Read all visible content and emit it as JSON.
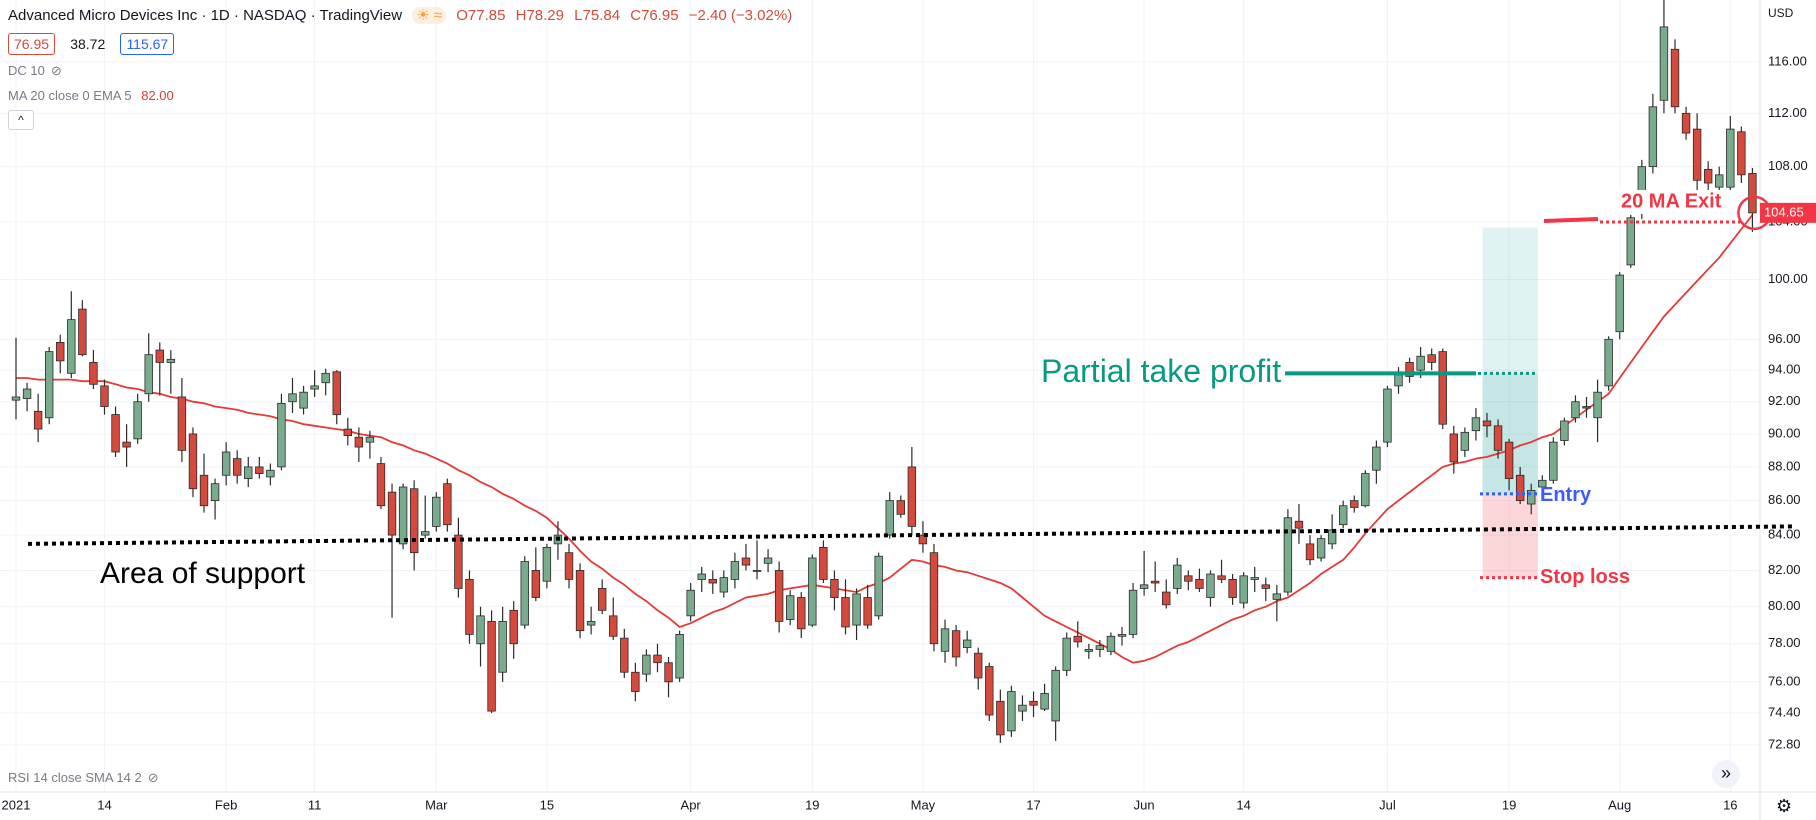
{
  "chart_data": {
    "type": "candlestick",
    "symbol": "Advanced Micro Devices Inc · 1D · NASDAQ · TradingView",
    "readout": [
      "O77.85",
      "H78.29",
      "L75.84",
      "C76.95",
      "−2.40 (−3.02%)"
    ],
    "badges": [
      76.95,
      38.72,
      115.67
    ],
    "dc_label": "DC 10",
    "rsi_label": "RSI 14 close SMA 14 2",
    "currency": "USD",
    "log_scale": true,
    "grid": true,
    "up_color": "#79ab8d",
    "down_color": "#d44a3d",
    "wick_color": "#2b2b2b",
    "categories": [
      "2021",
      null,
      null,
      null,
      null,
      null,
      null,
      null,
      "14",
      null,
      null,
      null,
      null,
      null,
      null,
      null,
      null,
      null,
      null,
      "Feb",
      null,
      null,
      null,
      null,
      null,
      null,
      null,
      "11",
      null,
      null,
      null,
      null,
      null,
      null,
      null,
      null,
      null,
      null,
      "Mar",
      null,
      null,
      null,
      null,
      null,
      null,
      null,
      null,
      null,
      "15",
      null,
      null,
      null,
      null,
      null,
      null,
      null,
      null,
      null,
      null,
      null,
      null,
      "Apr",
      null,
      null,
      null,
      null,
      null,
      null,
      null,
      null,
      null,
      null,
      "19",
      null,
      null,
      null,
      null,
      null,
      null,
      null,
      null,
      null,
      "May",
      null,
      null,
      null,
      null,
      null,
      null,
      null,
      null,
      null,
      "17",
      null,
      null,
      null,
      null,
      null,
      null,
      null,
      null,
      null,
      "Jun",
      null,
      null,
      null,
      null,
      null,
      null,
      null,
      null,
      "14",
      null,
      null,
      null,
      null,
      null,
      null,
      null,
      null,
      null,
      null,
      null,
      null,
      "Jul",
      null,
      null,
      null,
      null,
      null,
      null,
      null,
      null,
      null,
      null,
      "19",
      null,
      null,
      null,
      null,
      null,
      null,
      null,
      null,
      null,
      "Aug",
      null,
      null,
      null,
      null,
      null,
      null,
      null,
      null,
      null,
      "16",
      null,
      null
    ],
    "open": [
      92.1,
      92.2,
      91.4,
      91.0,
      95.8,
      93.8,
      98.0,
      94.5,
      93.0,
      91.2,
      89.5,
      89.7,
      92.5,
      95.3,
      94.5,
      92.3,
      90.0,
      87.5,
      86.0,
      87.5,
      88.5,
      87.3,
      88.0,
      87.4,
      88.0,
      92.0,
      91.6,
      92.8,
      93.2,
      93.9,
      90.3,
      89.8,
      89.5,
      88.2,
      86.5,
      83.5,
      86.7,
      84.0,
      84.5,
      87.0,
      84.0,
      81.5,
      78.0,
      79.2,
      76.5,
      79.8,
      79.0,
      82.0,
      81.4,
      83.5,
      83.0,
      82.0,
      79.0,
      81.0,
      79.5,
      78.3,
      76.5,
      76.4,
      77.4,
      77.0,
      76.2,
      79.5,
      81.5,
      81.5,
      80.8,
      81.5,
      82.7,
      82.0,
      82.4,
      82.0,
      79.3,
      80.5,
      79.0,
      83.3,
      81.5,
      80.5,
      79.0,
      80.5,
      79.5,
      84.0,
      86.0,
      88.0,
      84.0,
      83.0,
      77.6,
      78.7,
      77.8,
      77.5,
      76.8,
      75.0,
      73.5,
      74.5,
      75.0,
      74.6,
      74.0,
      76.6,
      78.4,
      77.6,
      77.7,
      77.6,
      78.4,
      78.5,
      81.0,
      81.4,
      80.8,
      81.0,
      81.7,
      81.5,
      80.5,
      81.7,
      81.5,
      80.2,
      81.5,
      81.2,
      80.4,
      80.8,
      84.8,
      83.5,
      82.7,
      83.5,
      84.6,
      86.0,
      85.7,
      87.8,
      89.5,
      93.0,
      94.5,
      94.0,
      95.0,
      95.2,
      90.0,
      89.0,
      90.2,
      90.8,
      90.5,
      89.5,
      87.5,
      85.8,
      86.8,
      87.2,
      89.6,
      91.0,
      91.7,
      91.0,
      93.0,
      96.5,
      101.0,
      104.6,
      108.0,
      113.0,
      117.0,
      112.0,
      110.8,
      107.8,
      106.5,
      106.5,
      110.6,
      107.5
    ],
    "high": [
      96.1,
      93.2,
      92.5,
      95.5,
      96.3,
      99.2,
      98.6,
      95.3,
      93.4,
      91.7,
      90.6,
      92.5,
      96.4,
      95.8,
      95.3,
      93.5,
      90.4,
      88.8,
      87.3,
      89.5,
      89.0,
      88.6,
      88.6,
      88.2,
      92.5,
      93.5,
      93.0,
      94.0,
      94.1,
      94.0,
      91.0,
      90.4,
      90.2,
      88.6,
      87.0,
      87.0,
      87.2,
      86.3,
      86.5,
      87.3,
      85.0,
      82.0,
      80.0,
      79.8,
      80.0,
      80.3,
      82.8,
      83.3,
      83.5,
      84.8,
      83.5,
      82.4,
      80.0,
      81.5,
      80.5,
      78.8,
      77.0,
      77.7,
      78.0,
      77.3,
      78.7,
      81.3,
      82.2,
      82.0,
      82.0,
      83.0,
      83.5,
      83.7,
      83.2,
      82.5,
      80.9,
      80.8,
      82.9,
      83.7,
      82.0,
      81.5,
      81.0,
      81.2,
      83.0,
      86.5,
      86.3,
      89.2,
      84.8,
      83.5,
      79.3,
      79.0,
      78.7,
      77.8,
      77.0,
      75.6,
      75.8,
      75.3,
      75.5,
      75.9,
      76.8,
      78.6,
      79.2,
      78.0,
      78.2,
      78.6,
      78.9,
      81.3,
      83.1,
      82.5,
      81.5,
      82.7,
      82.0,
      82.1,
      82.0,
      82.6,
      81.8,
      81.9,
      82.2,
      81.6,
      81.2,
      85.5,
      85.8,
      84.0,
      84.0,
      85.2,
      86.0,
      86.3,
      87.8,
      89.6,
      93.0,
      94.2,
      94.8,
      95.5,
      95.4,
      95.4,
      90.5,
      90.4,
      91.6,
      91.3,
      90.9,
      89.7,
      88.0,
      87.0,
      87.5,
      89.8,
      91.0,
      92.4,
      92.3,
      93.4,
      96.2,
      100.5,
      104.5,
      108.5,
      113.5,
      121.0,
      117.8,
      112.5,
      112.0,
      108.4,
      108.0,
      111.8,
      111.0,
      107.9
    ],
    "low": [
      90.9,
      91.4,
      89.5,
      90.6,
      93.8,
      93.5,
      94.9,
      92.8,
      91.2,
      88.6,
      88.0,
      89.4,
      92.0,
      92.4,
      92.5,
      88.3,
      86.2,
      85.3,
      84.9,
      86.9,
      87.0,
      86.8,
      87.3,
      86.9,
      87.8,
      91.3,
      91.2,
      92.3,
      92.4,
      90.6,
      89.3,
      88.3,
      88.5,
      85.5,
      79.4,
      83.2,
      82.0,
      83.8,
      84.2,
      84.2,
      80.5,
      78.0,
      76.8,
      74.4,
      76.0,
      77.2,
      78.8,
      80.3,
      81.0,
      82.6,
      81.0,
      78.3,
      78.5,
      79.6,
      78.2,
      76.2,
      75.0,
      76.0,
      76.5,
      75.2,
      76.0,
      79.2,
      80.8,
      80.7,
      80.5,
      81.0,
      82.0,
      81.5,
      81.9,
      78.6,
      79.0,
      78.3,
      78.9,
      81.3,
      79.8,
      78.5,
      78.2,
      78.8,
      79.3,
      83.8,
      85.0,
      84.0,
      83.0,
      77.6,
      77.0,
      76.8,
      77.5,
      75.6,
      74.0,
      72.9,
      73.2,
      74.0,
      74.2,
      74.5,
      73.0,
      76.3,
      77.8,
      77.2,
      77.3,
      77.4,
      77.9,
      78.3,
      80.6,
      80.8,
      79.9,
      80.7,
      80.9,
      80.8,
      80.0,
      81.3,
      80.1,
      79.9,
      80.8,
      80.3,
      79.2,
      80.6,
      83.5,
      82.3,
      82.5,
      83.2,
      84.4,
      85.3,
      85.6,
      87.0,
      89.2,
      92.5,
      93.2,
      93.5,
      94.0,
      90.3,
      87.6,
      88.6,
      89.6,
      89.8,
      88.5,
      86.6,
      85.8,
      85.2,
      86.3,
      87.0,
      89.3,
      90.7,
      91.0,
      89.5,
      92.7,
      96.0,
      100.8,
      104.2,
      107.5,
      112.0,
      112.0,
      110.0,
      106.2,
      106.3,
      105.6,
      105.8,
      106.8,
      103.3
    ],
    "close": [
      92.3,
      92.8,
      90.3,
      95.2,
      94.6,
      97.3,
      95.0,
      93.1,
      91.7,
      88.9,
      89.2,
      92.0,
      95.0,
      94.5,
      94.7,
      89.0,
      86.7,
      85.7,
      87.0,
      88.9,
      87.5,
      88.0,
      87.6,
      87.8,
      91.9,
      92.5,
      92.6,
      93.0,
      93.8,
      91.2,
      89.9,
      89.2,
      89.8,
      85.7,
      84.0,
      86.8,
      83.0,
      84.2,
      86.2,
      84.6,
      81.0,
      78.5,
      79.5,
      74.5,
      79.2,
      78.0,
      82.5,
      80.5,
      83.3,
      84.0,
      81.5,
      78.7,
      79.2,
      79.8,
      78.4,
      76.5,
      75.5,
      77.4,
      77.0,
      76.0,
      78.5,
      80.9,
      81.8,
      81.3,
      81.6,
      82.5,
      82.3,
      82.0,
      82.7,
      79.2,
      80.6,
      78.8,
      82.7,
      81.5,
      80.5,
      78.9,
      80.7,
      79.0,
      82.8,
      86.0,
      85.2,
      84.5,
      83.5,
      78.0,
      78.8,
      77.3,
      78.2,
      76.2,
      74.3,
      73.3,
      75.5,
      74.8,
      74.8,
      75.4,
      76.6,
      78.3,
      78.1,
      77.7,
      77.9,
      78.4,
      78.5,
      80.9,
      81.2,
      81.3,
      80.1,
      82.3,
      81.4,
      81.0,
      81.8,
      81.5,
      80.5,
      81.7,
      81.6,
      81.0,
      80.7,
      85.0,
      84.4,
      82.6,
      83.8,
      84.3,
      85.7,
      85.6,
      87.6,
      89.2,
      92.8,
      93.7,
      93.6,
      94.9,
      94.5,
      90.6,
      88.3,
      90.1,
      91.0,
      90.5,
      89.0,
      87.3,
      86.0,
      86.6,
      87.2,
      89.5,
      90.8,
      92.0,
      91.6,
      92.6,
      96.0,
      100.3,
      104.3,
      108.0,
      112.5,
      118.8,
      112.5,
      110.5,
      107.0,
      106.8,
      107.4,
      110.8,
      107.4,
      104.65
    ],
    "indicators": [
      {
        "name": "MA 20 close 0 EMA 5",
        "color": "#e53935",
        "current": {
          "value": 82,
          "label": "82.00"
        },
        "values": [
          93.5,
          93.5,
          93.4,
          93.4,
          93.4,
          93.4,
          93.3,
          93.3,
          93.3,
          93.1,
          92.9,
          92.8,
          92.6,
          92.5,
          92.3,
          92.2,
          92.0,
          91.9,
          91.7,
          91.6,
          91.5,
          91.3,
          91.2,
          91.1,
          90.9,
          90.8,
          90.6,
          90.5,
          90.4,
          90.3,
          90.2,
          90.0,
          89.9,
          89.8,
          89.5,
          89.3,
          89.0,
          88.8,
          88.5,
          88.2,
          87.8,
          87.5,
          87.1,
          86.8,
          86.4,
          86.1,
          85.7,
          85.4,
          85.0,
          84.4,
          83.8,
          83.1,
          82.5,
          82.1,
          81.6,
          81.2,
          80.7,
          80.3,
          79.8,
          79.4,
          78.9,
          79.1,
          79.4,
          79.7,
          79.9,
          80.2,
          80.5,
          80.6,
          80.7,
          80.9,
          81.0,
          81.1,
          81.2,
          81.1,
          81.0,
          80.9,
          80.8,
          81.1,
          81.3,
          81.6,
          82.1,
          82.6,
          82.5,
          82.3,
          82.2,
          82.0,
          81.9,
          81.7,
          81.5,
          81.3,
          81.0,
          80.5,
          80.0,
          79.5,
          79.2,
          78.9,
          78.6,
          78.3,
          78.0,
          77.7,
          77.3,
          77.0,
          77.1,
          77.3,
          77.6,
          77.9,
          78.1,
          78.4,
          78.7,
          79.0,
          79.3,
          79.5,
          79.8,
          80.0,
          80.3,
          80.5,
          80.9,
          81.3,
          81.8,
          82.2,
          82.6,
          83.3,
          84.1,
          84.8,
          85.5,
          86.0,
          86.5,
          87.0,
          87.5,
          88.0,
          88.2,
          88.3,
          88.5,
          88.6,
          88.8,
          89.0,
          89.3,
          89.5,
          89.8,
          90.0,
          90.5,
          91.0,
          91.5,
          92.0,
          92.5,
          93.5,
          94.5,
          95.5,
          96.5,
          97.5,
          98.3,
          99.1,
          99.9,
          100.7,
          101.5,
          102.5,
          103.5,
          104.5
        ]
      }
    ],
    "ylim": [
      70.5,
      121
    ],
    "yticks": [
      {
        "value": 116,
        "label": "116.00"
      },
      {
        "value": 112,
        "label": "112.00"
      },
      {
        "value": 108,
        "label": "108.00"
      },
      {
        "value": 104,
        "label": "104.00"
      },
      {
        "value": 100,
        "label": "100.00"
      },
      {
        "value": 96,
        "label": "96.00"
      },
      {
        "value": 94,
        "label": "94.00"
      },
      {
        "value": 92,
        "label": "92.00"
      },
      {
        "value": 90,
        "label": "90.00"
      },
      {
        "value": 88,
        "label": "88.00"
      },
      {
        "value": 86,
        "label": "86.00"
      },
      {
        "value": 84,
        "label": "84.00"
      },
      {
        "value": 82,
        "label": "82.00"
      },
      {
        "value": 80,
        "label": "80.00"
      },
      {
        "value": 78,
        "label": "78.00"
      },
      {
        "value": 76,
        "label": "76.00"
      },
      {
        "value": 74.4,
        "label": "74.40"
      },
      {
        "value": 72.8,
        "label": "72.80"
      }
    ],
    "annotations": {
      "take_profit": "Partial take profit",
      "support": "Area of support",
      "entry": "Entry",
      "stop": "Stop loss",
      "exit": "20 MA Exit"
    },
    "levels": {
      "support_start": 83.5,
      "support_end": 84.5,
      "take_profit": 93.8,
      "zone_top": 103.6,
      "entry": 86.4,
      "stop_loss": 81.6,
      "exit": 104.0
    }
  }
}
